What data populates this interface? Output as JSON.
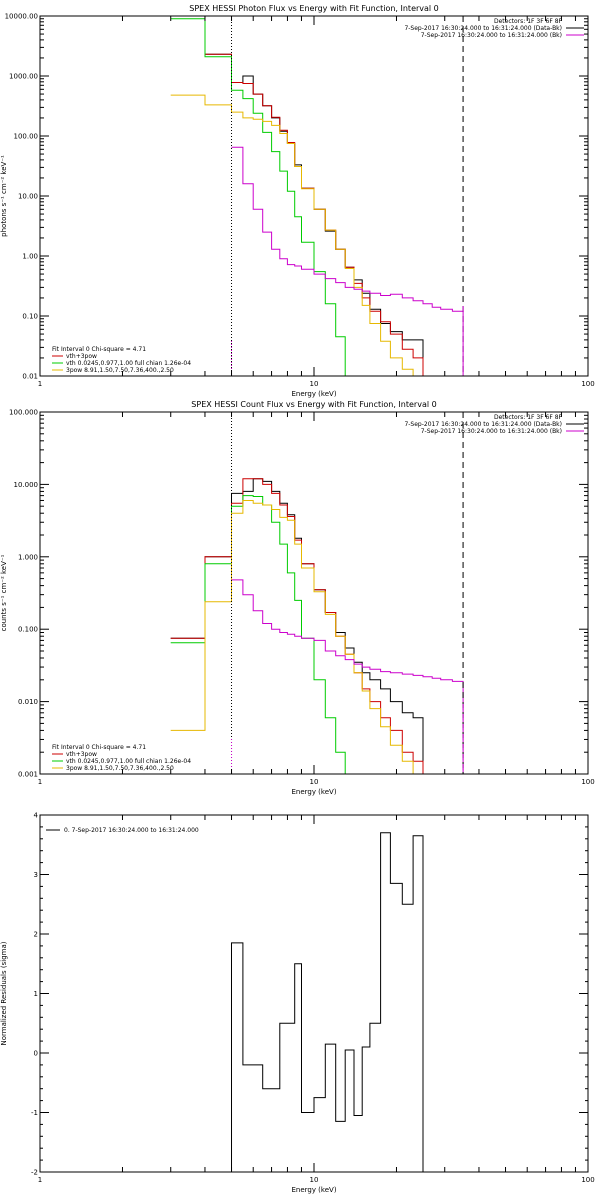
{
  "chart_data": [
    {
      "type": "line",
      "title": "SPEX HESSI Photon Flux vs Energy with Fit Function, Interval 0",
      "xlabel": "Energy (keV)",
      "ylabel": "photons s⁻¹ cm⁻² keV⁻¹",
      "xscale": "log",
      "yscale": "log",
      "xlim": [
        1,
        100
      ],
      "ylim": [
        0.01,
        10000
      ],
      "xticks": [
        1,
        10,
        100
      ],
      "xtick_labels": [
        "1",
        "10",
        "100"
      ],
      "yticks": [
        0.01,
        0.1,
        1,
        10,
        100,
        1000,
        10000
      ],
      "ytick_labels": [
        "0.01",
        "0.10",
        "1.00",
        "10.00",
        "100.00",
        "1000.00",
        "10000.00"
      ],
      "vlines": [
        {
          "x": 5,
          "style": "dotted",
          "color": "#000000"
        },
        {
          "x": 35,
          "style": "dashed",
          "color": "#000000"
        }
      ],
      "info_lines": [
        "Detectors: 1F 3F 6F 8F",
        "7-Sep-2017 16:30:24.000 to 16:31:24.000 (Data-Bk)",
        "7-Sep-2017 16:30:24.000 to 16:31:24.000 (Bk)"
      ],
      "info_colors": [
        "#000000",
        "#cc00cc"
      ],
      "legend_lines": [
        {
          "text": "Fit Interval 0   Chi-square = 4.71",
          "color": null
        },
        {
          "text": "vth+3pow",
          "color": "#cc0000"
        },
        {
          "text": "vth 0.0245,0.977,1.00  full chian 1.26e-04",
          "color": "#00cc00"
        },
        {
          "text": "3pow 8.91,1.50,7.50,7.36,400.,2.50",
          "color": "#e6b800"
        }
      ],
      "edges": [
        3,
        4,
        5,
        5.5,
        6,
        6.5,
        7,
        7.5,
        8,
        8.5,
        9,
        10,
        11,
        12,
        13,
        14,
        15,
        16,
        17.5,
        19,
        21,
        23,
        25,
        27,
        29,
        32,
        35
      ],
      "series": [
        {
          "color": "#000000",
          "values": [
            10000,
            2300,
            780,
            1000,
            500,
            320,
            200,
            120,
            75,
            33,
            13.5,
            6,
            2.6,
            1.3,
            0.65,
            0.4,
            0.24,
            0.13,
            0.075,
            0.055,
            0.04,
            0.04
          ]
        },
        {
          "color": "#cc0000",
          "values": [
            10000,
            2300,
            780,
            750,
            500,
            320,
            205,
            125,
            78,
            31,
            13.5,
            6,
            2.7,
            1.3,
            0.65,
            0.35,
            0.2,
            0.12,
            0.08,
            0.05,
            0.028,
            0.02
          ]
        },
        {
          "color": "#00cc00",
          "values": [
            9000,
            2100,
            580,
            420,
            240,
            115,
            55,
            26,
            12,
            4.5,
            1.7,
            0.55,
            0.16,
            0.045,
            0.01
          ]
        },
        {
          "color": "#e6b800",
          "values": [
            480,
            330,
            250,
            200,
            190,
            175,
            150,
            110,
            75,
            31,
            13.2,
            6,
            2.7,
            1.3,
            0.62,
            0.3,
            0.15,
            0.075,
            0.038,
            0.02,
            0.013,
            0.008
          ]
        },
        {
          "color": "#cc00cc",
          "start": 2,
          "values": [
            65,
            16,
            6,
            2.5,
            1.3,
            0.9,
            0.72,
            0.68,
            0.6,
            0.5,
            0.42,
            0.36,
            0.3,
            0.28,
            0.26,
            0.24,
            0.22,
            0.23,
            0.2,
            0.18,
            0.16,
            0.14,
            0.13,
            0.12
          ]
        }
      ]
    },
    {
      "type": "line",
      "title": "SPEX HESSI Count Flux vs Energy with Fit Function, Interval 0",
      "xlabel": "Energy (keV)",
      "ylabel": "counts s⁻¹ cm⁻² keV⁻¹",
      "xscale": "log",
      "yscale": "log",
      "xlim": [
        1,
        100
      ],
      "ylim": [
        0.001,
        100
      ],
      "xticks": [
        1,
        10,
        100
      ],
      "xtick_labels": [
        "1",
        "10",
        "100"
      ],
      "yticks": [
        0.001,
        0.01,
        0.1,
        1,
        10,
        100
      ],
      "ytick_labels": [
        "0.001",
        "0.010",
        "0.100",
        "1.000",
        "10.000",
        "100.000"
      ],
      "vlines": [
        {
          "x": 5,
          "style": "dotted",
          "color": "#000000"
        },
        {
          "x": 35,
          "style": "dashed",
          "color": "#000000"
        }
      ],
      "info_lines": [
        "Detectors: 1F 3F 6F 8F",
        "7-Sep-2017 16:30:24.000 to 16:31:24.000 (Data-Bk)",
        "7-Sep-2017 16:30:24.000 to 16:31:24.000 (Bk)"
      ],
      "info_colors": [
        "#000000",
        "#cc00cc"
      ],
      "legend_lines": [
        {
          "text": "Fit Interval 0   Chi-square = 4.71",
          "color": null
        },
        {
          "text": "vth+3pow",
          "color": "#cc0000"
        },
        {
          "text": "vth 0.0245,0.977,1.00  full chian 1.26e-04",
          "color": "#00cc00"
        },
        {
          "text": "3pow 8.91,1.50,7.50,7.36,400.,2.50",
          "color": "#e6b800"
        }
      ],
      "edges": [
        3,
        4,
        5,
        5.5,
        6,
        6.5,
        7,
        7.5,
        8,
        8.5,
        9,
        10,
        11,
        12,
        13,
        14,
        15,
        16,
        17.5,
        19,
        21,
        23,
        25,
        27,
        29,
        32,
        35
      ],
      "series": [
        {
          "color": "#000000",
          "values": [
            0.075,
            1,
            7.5,
            8,
            12,
            11,
            8,
            5.5,
            3.8,
            1.8,
            0.8,
            0.35,
            0.17,
            0.09,
            0.055,
            0.035,
            0.025,
            0.02,
            0.015,
            0.01,
            0.007,
            0.006
          ]
        },
        {
          "color": "#cc0000",
          "values": [
            0.075,
            1,
            5.5,
            12,
            12,
            10,
            7.5,
            5.2,
            3.6,
            1.7,
            0.8,
            0.35,
            0.17,
            0.08,
            0.045,
            0.025,
            0.015,
            0.01,
            0.006,
            0.004,
            0.002,
            0.0015
          ]
        },
        {
          "color": "#00cc00",
          "values": [
            0.065,
            0.8,
            5,
            7,
            6.8,
            5.2,
            3,
            1.5,
            0.6,
            0.25,
            0.075,
            0.02,
            0.006,
            0.002,
            0.001
          ]
        },
        {
          "color": "#e6b800",
          "values": [
            0.004,
            0.24,
            4,
            6,
            5.5,
            5.2,
            4.5,
            3.5,
            3.2,
            1.5,
            0.7,
            0.33,
            0.16,
            0.08,
            0.045,
            0.025,
            0.014,
            0.008,
            0.0045,
            0.0025,
            0.0015,
            0.001
          ]
        },
        {
          "color": "#cc00cc",
          "start": 2,
          "values": [
            0.48,
            0.3,
            0.18,
            0.12,
            0.1,
            0.09,
            0.085,
            0.08,
            0.075,
            0.07,
            0.05,
            0.043,
            0.038,
            0.033,
            0.03,
            0.028,
            0.026,
            0.025,
            0.024,
            0.023,
            0.022,
            0.021,
            0.02,
            0.019
          ]
        }
      ]
    },
    {
      "type": "line",
      "title": "",
      "xlabel": "Energy (keV)",
      "ylabel": "Normalized Residuals (sigma)",
      "xscale": "log",
      "yscale": "linear",
      "xlim": [
        1,
        100
      ],
      "ylim": [
        -2,
        4
      ],
      "xticks": [
        1,
        10,
        100
      ],
      "xtick_labels": [
        "1",
        "10",
        "100"
      ],
      "yticks": [
        -2,
        -1,
        0,
        1,
        2,
        3,
        4
      ],
      "ytick_labels": [
        "-2",
        "-1",
        "0",
        "1",
        "2",
        "3",
        "4"
      ],
      "vlines": [],
      "info_lines": [],
      "info_colors": [],
      "legend_lines": [
        {
          "text": "0.  7-Sep-2017 16:30:24.000 to 16:31:24.000",
          "color": "#000000",
          "line": true
        }
      ],
      "edges": [
        5,
        5.5,
        6.5,
        7.5,
        8.5,
        9,
        10,
        11,
        12,
        13,
        14,
        15,
        16,
        17.5,
        19,
        21,
        23,
        25,
        27,
        29,
        32,
        35
      ],
      "series": [
        {
          "color": "#000000",
          "closed": true,
          "values": [
            1.85,
            -0.2,
            -0.6,
            0.5,
            1.5,
            -1.0,
            -0.75,
            0.15,
            -1.15,
            0.05,
            -1.05,
            0.1,
            0.5,
            3.7,
            2.85,
            2.5,
            3.65
          ]
        }
      ]
    }
  ]
}
